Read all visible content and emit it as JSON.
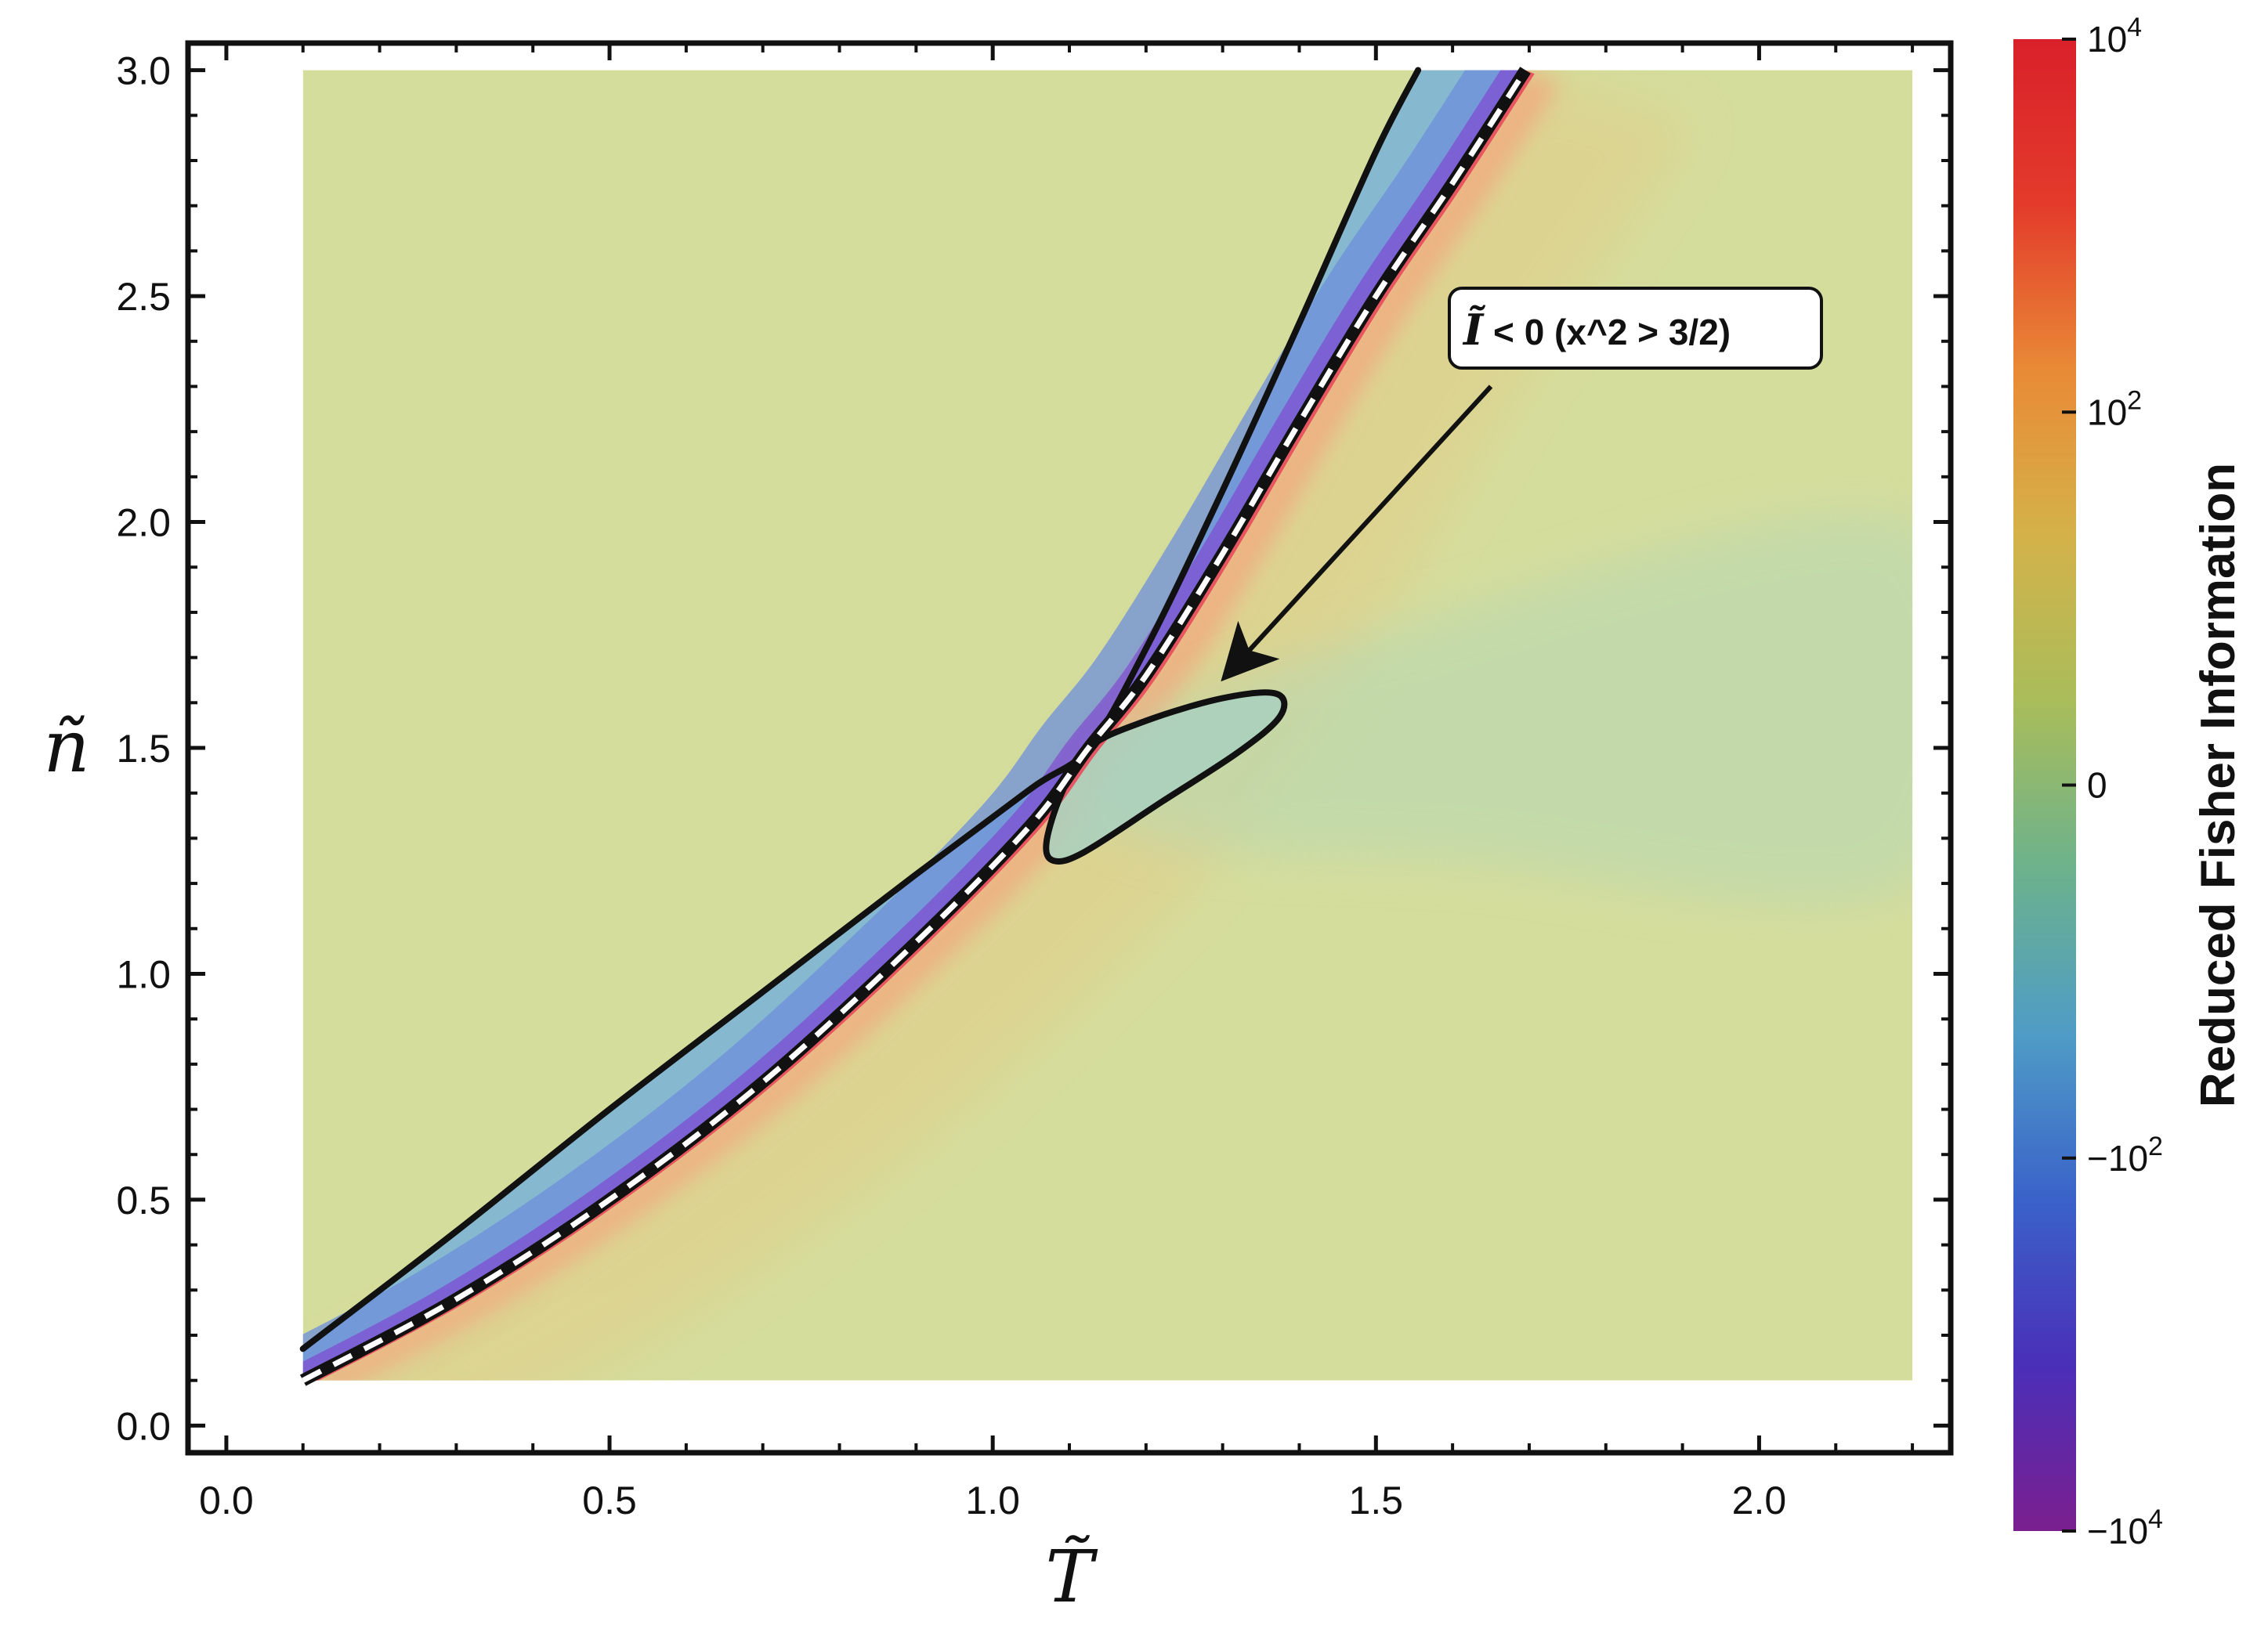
{
  "chart_data": {
    "type": "heatmap",
    "xlabel": "T̃",
    "ylabel": "ñ",
    "xlim": [
      -0.05,
      2.25
    ],
    "ylim": [
      -0.06,
      3.06
    ],
    "data_xrange": [
      0.1,
      2.2
    ],
    "data_yrange": [
      0.1,
      3.0
    ],
    "x_ticks": [
      "0.0",
      "0.5",
      "1.0",
      "1.5",
      "2.0"
    ],
    "x_tick_values": [
      0.0,
      0.5,
      1.0,
      1.5,
      2.0
    ],
    "y_ticks": [
      "0.0",
      "0.5",
      "1.0",
      "1.5",
      "2.0",
      "2.5",
      "3.0"
    ],
    "y_tick_values": [
      0.0,
      0.5,
      1.0,
      1.5,
      2.0,
      2.5,
      3.0
    ],
    "colorbar": {
      "title": "Reduced Fisher Information",
      "labels": [
        {
          "base": "10",
          "exp": "4",
          "prefix": "",
          "position": 1.0
        },
        {
          "base": "10",
          "exp": "2",
          "prefix": "",
          "position": 0.75
        },
        {
          "base": "0",
          "exp": "",
          "prefix": "",
          "position": 0.5
        },
        {
          "base": "10",
          "exp": "2",
          "prefix": "−",
          "position": 0.25
        },
        {
          "base": "10",
          "exp": "4",
          "prefix": "−",
          "position": 0.0
        }
      ],
      "colors": [
        "#7b1f8f",
        "#4a2fb8",
        "#3a62c9",
        "#4f9cc6",
        "#6cb28c",
        "#a9bd5a",
        "#d4b24a",
        "#e98a36",
        "#e33b2b",
        "#d9202a"
      ]
    },
    "background_color": "#d5dd9c",
    "critical_point": {
      "x": 1.125,
      "y": 1.5
    },
    "curves": [
      {
        "name": "",
        "style": "solid",
        "points": [
          [
            0.1,
            0.17
          ],
          [
            0.3,
            0.43
          ],
          [
            0.5,
            0.7
          ],
          [
            0.7,
            0.96
          ],
          [
            0.9,
            1.22
          ],
          [
            1.05,
            1.41
          ],
          [
            1.125,
            1.5
          ],
          [
            1.2,
            1.72
          ],
          [
            1.3,
            2.07
          ],
          [
            1.4,
            2.44
          ],
          [
            1.5,
            2.82
          ],
          [
            1.555,
            3.0
          ]
        ]
      },
      {
        "name": "",
        "style": "dashed-spinodal",
        "points": [
          [
            0.1,
            0.1
          ],
          [
            0.3,
            0.28
          ],
          [
            0.5,
            0.5
          ],
          [
            0.7,
            0.76
          ],
          [
            0.9,
            1.07
          ],
          [
            1.05,
            1.33
          ],
          [
            1.125,
            1.5
          ],
          [
            1.2,
            1.66
          ],
          [
            1.3,
            1.93
          ],
          [
            1.4,
            2.22
          ],
          [
            1.5,
            2.5
          ],
          [
            1.6,
            2.75
          ],
          [
            1.695,
            3.0
          ]
        ]
      },
      {
        "name": "",
        "style": "solid-loop",
        "points": [
          [
            1.125,
            1.5
          ],
          [
            1.2,
            1.56
          ],
          [
            1.3,
            1.61
          ],
          [
            1.37,
            1.62
          ],
          [
            1.375,
            1.57
          ],
          [
            1.32,
            1.49
          ],
          [
            1.22,
            1.38
          ],
          [
            1.12,
            1.27
          ],
          [
            1.08,
            1.25
          ],
          [
            1.07,
            1.29
          ],
          [
            1.09,
            1.4
          ],
          [
            1.125,
            1.5
          ]
        ]
      }
    ],
    "annotation": {
      "label_symbol": "Ĩ",
      "label_rest": " < 0  (x^2 > 3/2)",
      "arrow_from": [
        1.65,
        2.3
      ],
      "arrow_to": [
        1.31,
        1.67
      ]
    }
  }
}
